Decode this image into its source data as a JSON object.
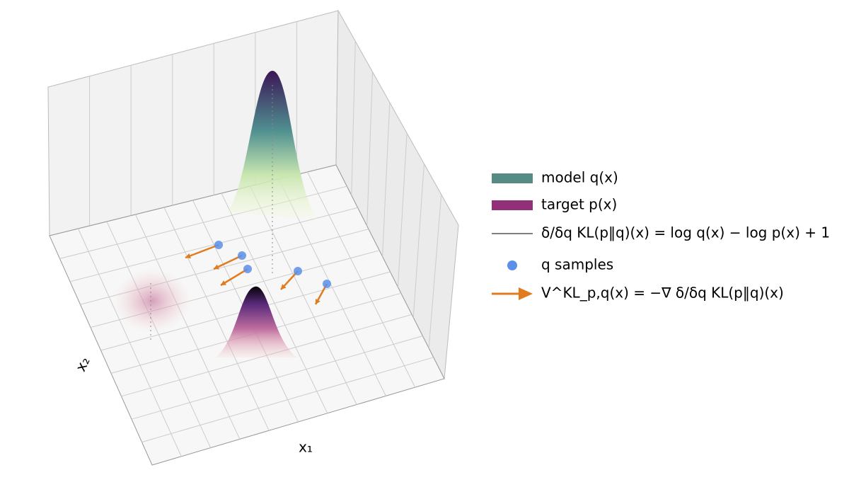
{
  "chart_data": {
    "type": "surface3d",
    "xlabel": "x₁",
    "ylabel": "x₂",
    "series": [
      {
        "name": "model q(x)",
        "color": "#568a84",
        "kind": "band"
      },
      {
        "name": "target p(x)",
        "color": "#913079",
        "kind": "band"
      },
      {
        "name": "δ/δq KL(p‖q)(x) = log q(x) − log p(x) + 1",
        "color": "#808080",
        "kind": "line"
      },
      {
        "name": "q samples",
        "color": "#5b8fea",
        "kind": "dot"
      },
      {
        "name": "V^KL_p,q(x) = −∇ δ/δq KL(p‖q)(x)",
        "color": "#e07b20",
        "kind": "arrow"
      }
    ]
  }
}
